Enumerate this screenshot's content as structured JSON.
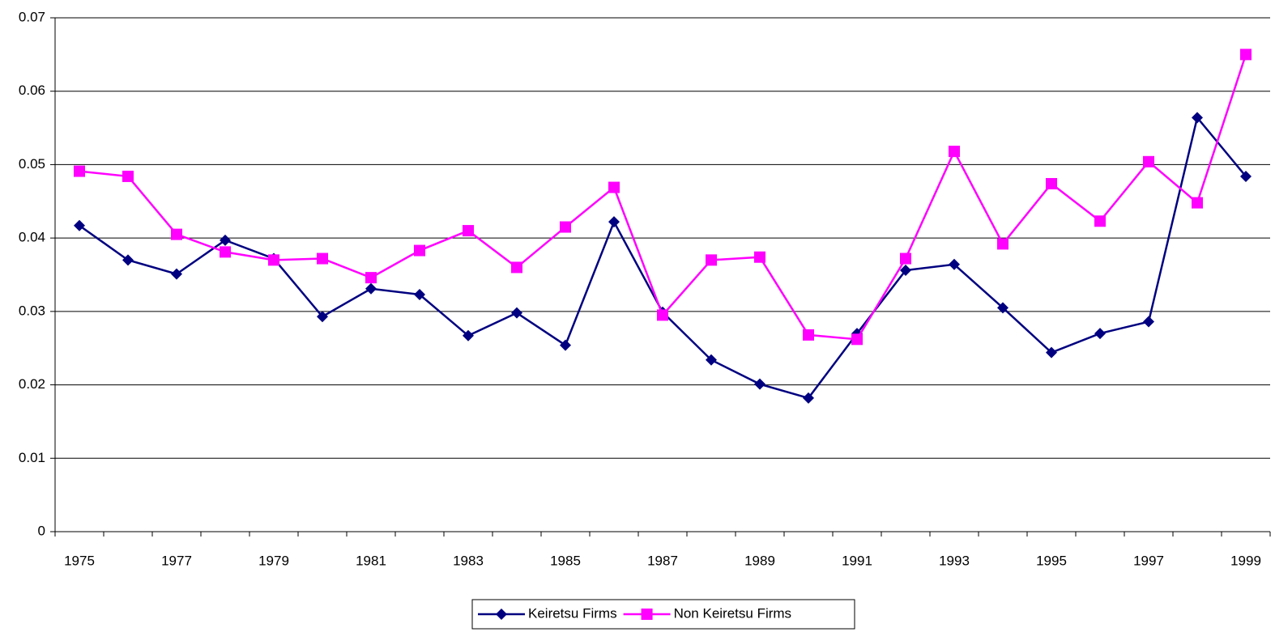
{
  "chart_data": {
    "type": "line",
    "categories": [
      "1975",
      null,
      "1977",
      null,
      "1979",
      null,
      "1981",
      null,
      "1983",
      null,
      "1985",
      null,
      "1987",
      null,
      "1989",
      null,
      "1991",
      null,
      "1993",
      null,
      "1995",
      null,
      "1997",
      null,
      "1999"
    ],
    "series": [
      {
        "name": "Keiretsu Firms",
        "color": "#000080",
        "marker": "diamond",
        "values": [
          0.0417,
          0.037,
          0.0351,
          0.0397,
          0.0372,
          0.0293,
          0.0331,
          0.0323,
          0.0267,
          0.0298,
          0.0254,
          0.0422,
          0.0299,
          0.0234,
          0.0201,
          0.0182,
          0.027,
          0.0356,
          0.0364,
          0.0305,
          0.0244,
          0.027,
          0.0286,
          0.0564,
          0.0484
        ]
      },
      {
        "name": "Non Keiretsu Firms",
        "color": "#ff00ff",
        "marker": "square",
        "values": [
          0.0491,
          0.0484,
          0.0405,
          0.0381,
          0.037,
          0.0372,
          0.0346,
          0.0383,
          0.041,
          0.036,
          0.0415,
          0.0469,
          0.0295,
          0.037,
          0.0374,
          0.0268,
          0.0262,
          0.0372,
          0.0518,
          0.0392,
          0.0474,
          0.0423,
          0.0504,
          0.0448,
          0.065
        ]
      }
    ],
    "ylim": [
      0,
      0.07
    ],
    "yticks": [
      0,
      0.01,
      0.02,
      0.03,
      0.04,
      0.05,
      0.06,
      0.07
    ],
    "grid": true,
    "legend": "bottom"
  }
}
